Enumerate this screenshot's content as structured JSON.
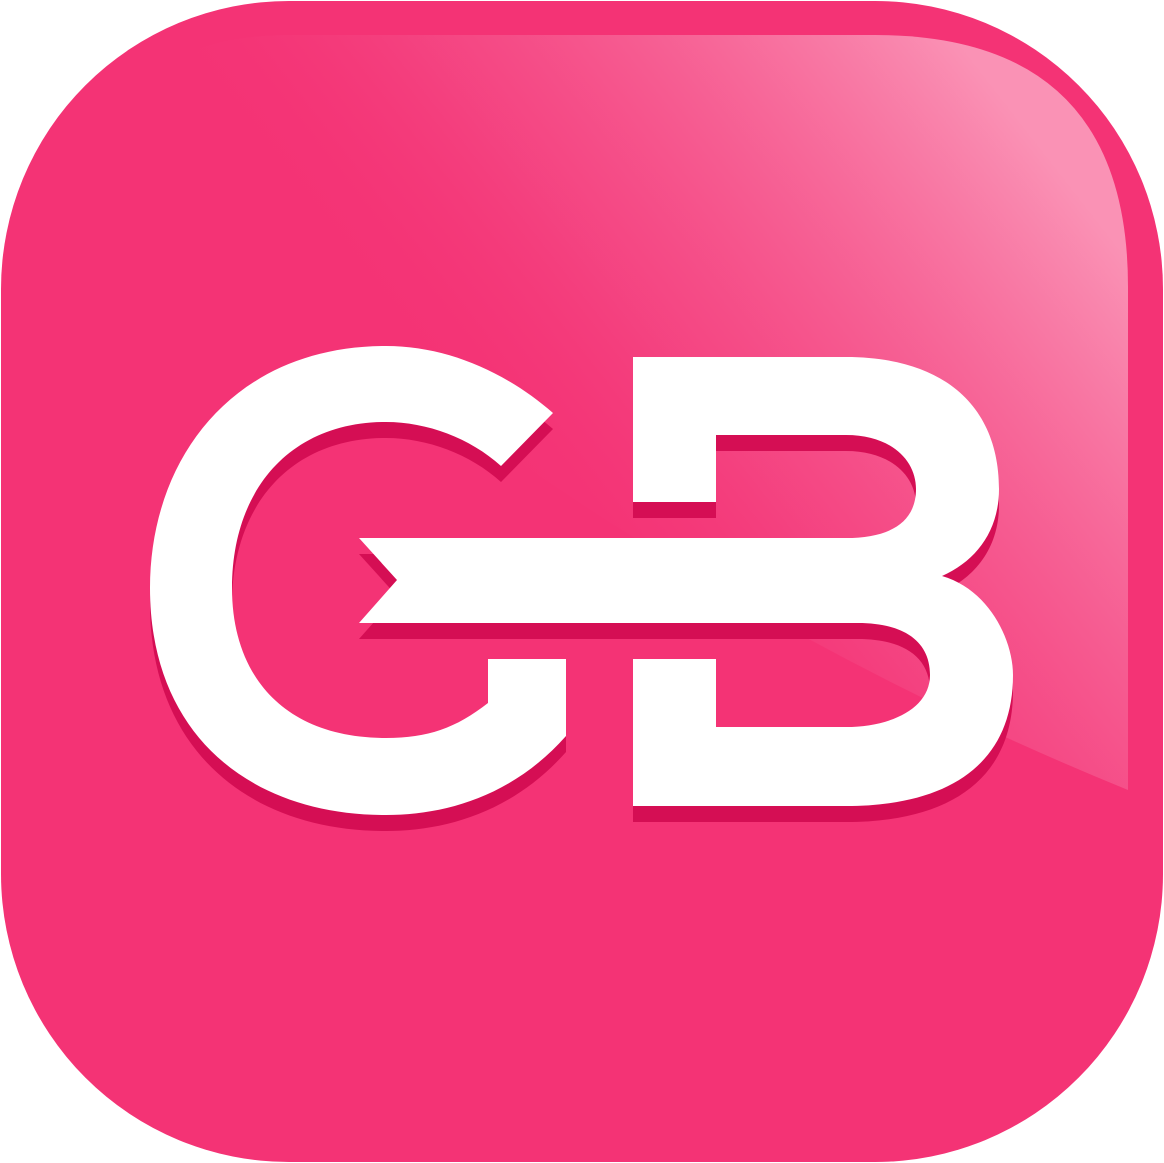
{
  "icon": {
    "monogram": "GB",
    "colors": {
      "base": "#F43375",
      "highlight": "#F98AAF",
      "letter_fill": "#FFFFFF",
      "letter_shadow": "#D50E54"
    }
  }
}
